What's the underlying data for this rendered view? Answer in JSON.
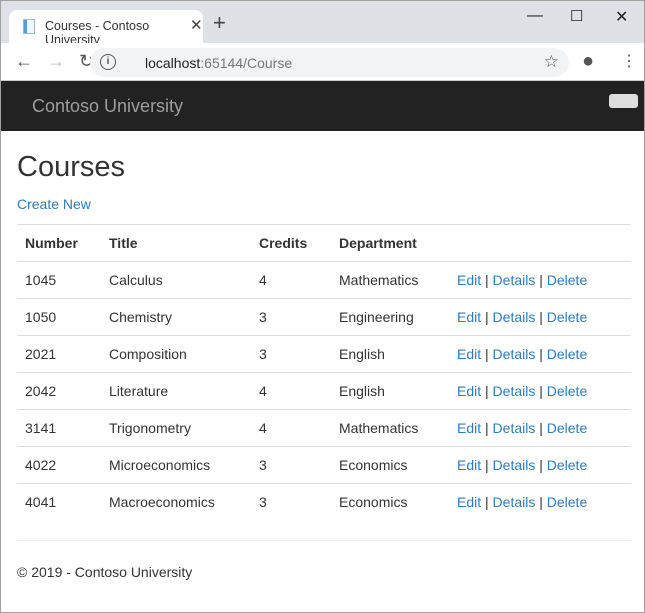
{
  "browser": {
    "tab_title": "Courses - Contoso University",
    "url_host": "localhost",
    "url_path": ":65144/Course"
  },
  "navbar": {
    "brand": "Contoso University"
  },
  "page": {
    "title": "Courses",
    "create_link": "Create New"
  },
  "table": {
    "headers": [
      "Number",
      "Title",
      "Credits",
      "Department"
    ],
    "actions": {
      "edit": "Edit",
      "details": "Details",
      "delete": "Delete"
    },
    "rows": [
      [
        "1045",
        "Calculus",
        "4",
        "Mathematics"
      ],
      [
        "1050",
        "Chemistry",
        "3",
        "Engineering"
      ],
      [
        "2021",
        "Composition",
        "3",
        "English"
      ],
      [
        "2042",
        "Literature",
        "4",
        "English"
      ],
      [
        "3141",
        "Trigonometry",
        "4",
        "Mathematics"
      ],
      [
        "4022",
        "Microeconomics",
        "3",
        "Economics"
      ],
      [
        "4041",
        "Macroeconomics",
        "3",
        "Economics"
      ]
    ]
  },
  "footer": {
    "text": "© 2019 - Contoso University"
  }
}
